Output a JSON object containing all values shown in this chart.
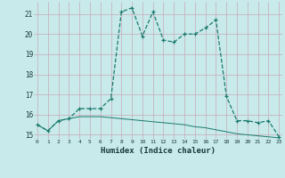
{
  "xlabel": "Humidex (Indice chaleur)",
  "x": [
    0,
    1,
    2,
    3,
    4,
    5,
    6,
    7,
    8,
    9,
    10,
    11,
    12,
    13,
    14,
    15,
    16,
    17,
    18,
    19,
    20,
    21,
    22,
    23
  ],
  "line1": [
    15.5,
    15.2,
    15.7,
    15.8,
    16.3,
    16.3,
    16.3,
    16.8,
    21.1,
    21.3,
    19.9,
    21.1,
    19.7,
    19.6,
    20.0,
    20.0,
    20.3,
    20.7,
    16.9,
    15.7,
    15.7,
    15.6,
    15.7,
    14.9
  ],
  "line2": [
    15.5,
    15.2,
    15.7,
    15.8,
    15.9,
    15.9,
    15.9,
    15.85,
    15.8,
    15.75,
    15.7,
    15.65,
    15.6,
    15.55,
    15.5,
    15.4,
    15.35,
    15.25,
    15.15,
    15.05,
    15.0,
    14.95,
    14.9,
    14.85
  ],
  "ylim": [
    14.8,
    21.6
  ],
  "xlim": [
    -0.3,
    23.3
  ],
  "yticks": [
    15,
    16,
    17,
    18,
    19,
    20,
    21
  ],
  "xticks": [
    0,
    1,
    2,
    3,
    4,
    5,
    6,
    7,
    8,
    9,
    10,
    11,
    12,
    13,
    14,
    15,
    16,
    17,
    18,
    19,
    20,
    21,
    22,
    23
  ],
  "line_color": "#1a7a6e",
  "bg_color": "#c8eaea",
  "grid_color": "#aad4d4"
}
